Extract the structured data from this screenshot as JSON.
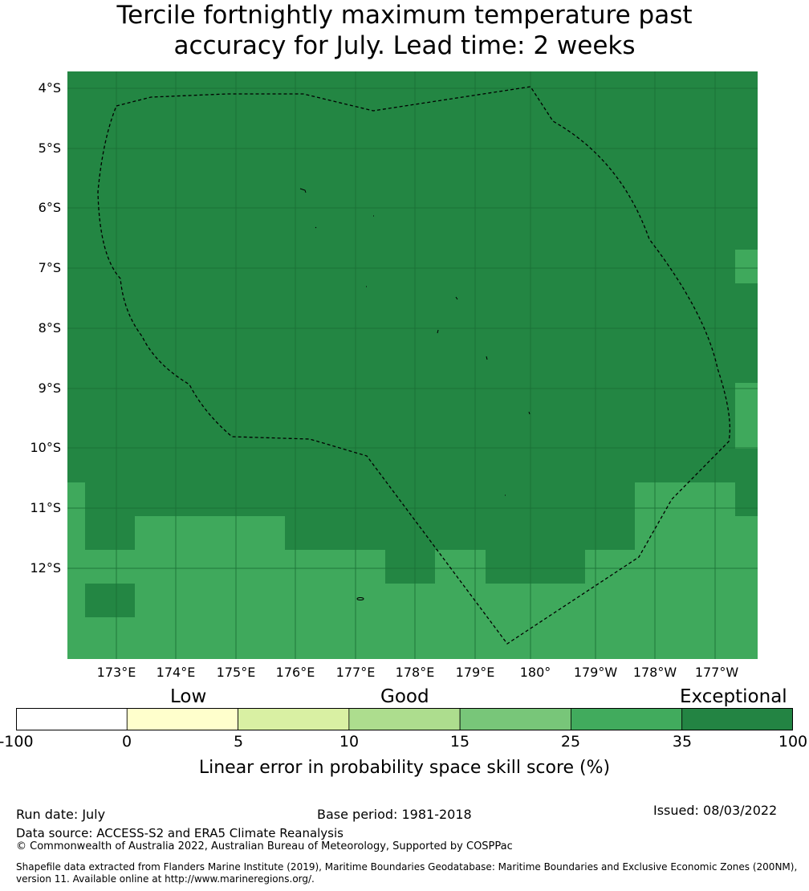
{
  "title_line1": "Tercile fortnightly maximum temperature past",
  "title_line2": "accuracy for July. Lead time: 2 weeks",
  "lat_labels": [
    "4°S",
    "5°S",
    "6°S",
    "7°S",
    "8°S",
    "9°S",
    "10°S",
    "11°S",
    "12°S"
  ],
  "lon_labels": [
    "173°E",
    "174°E",
    "175°E",
    "176°E",
    "177°E",
    "178°E",
    "179°E",
    "180°",
    "179°W",
    "178°W",
    "177°W"
  ],
  "colorbar": {
    "categories": [
      "Low",
      "Good",
      "Exceptional"
    ],
    "ticks": [
      "-100",
      "0",
      "5",
      "10",
      "15",
      "25",
      "35",
      "100"
    ],
    "colors": [
      "#ffffff",
      "#ffffcc",
      "#d9f0a3",
      "#addd8e",
      "#78c679",
      "#41ab5d",
      "#238443"
    ],
    "label": "Linear error in probability space skill score (%)"
  },
  "footer": {
    "run_date": "Run date: July",
    "base_period": "Base period: 1981-2018",
    "issued": "Issued: 08/03/2022",
    "data_source": "Data source: ACCESS-S2 and ERA5 Climate Reanalysis",
    "copyright": "© Commonwealth of Australia 2022, Australian Bureau of Meteorology, Supported by COSPPac",
    "shapefile_line1": "Shapefile data extracted from Flanders Marine Institute (2019), Maritime Boundaries Geodatabase: Maritime Boundaries and Exclusive Economic Zones (200NM),",
    "shapefile_line2": "version 11. Available online at http://www.marineregions.org/."
  },
  "map_colors": {
    "exceptional": "#238643",
    "high": "#3fa95c"
  }
}
